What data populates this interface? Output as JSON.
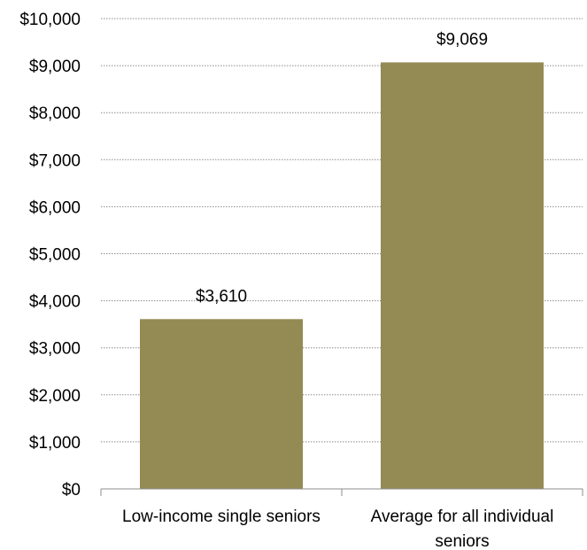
{
  "chart_data": {
    "type": "bar",
    "title": "",
    "xlabel": "",
    "ylabel": "",
    "categories": [
      [
        "Low-income single seniors"
      ],
      [
        "Average for all individual",
        "seniors"
      ]
    ],
    "values": [
      3610,
      9069
    ],
    "value_labels": [
      "$3,610",
      "$9,069"
    ],
    "ylim": [
      0,
      10000
    ],
    "y_ticks": [
      0,
      1000,
      2000,
      3000,
      4000,
      5000,
      6000,
      7000,
      8000,
      9000,
      10000
    ],
    "y_tick_labels": [
      "$0",
      "$1,000",
      "$2,000",
      "$3,000",
      "$4,000",
      "$5,000",
      "$6,000",
      "$7,000",
      "$8,000",
      "$9,000",
      "$10,000"
    ],
    "grid": true,
    "legend": "none",
    "colors": {
      "bar": "#948a54",
      "grid": "#8c8c8c",
      "axis": "#8c8c8c",
      "text": "#000000"
    }
  }
}
